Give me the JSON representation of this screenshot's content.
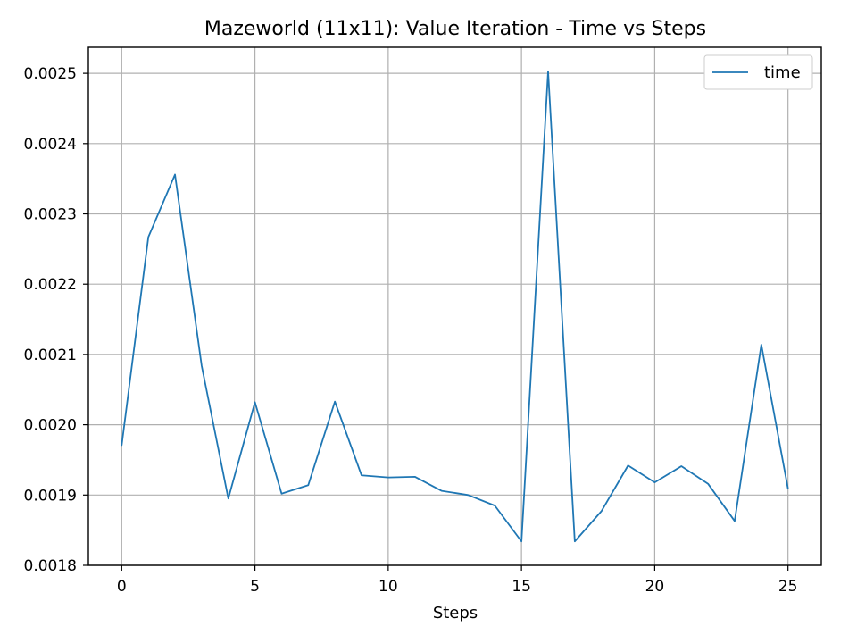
{
  "chart_data": {
    "type": "line",
    "title": "Mazeworld (11x11): Value Iteration - Time vs Steps",
    "xlabel": "Steps",
    "ylabel": "",
    "xlim": [
      -1.25,
      26.25
    ],
    "ylim": [
      0.0018,
      0.002537
    ],
    "grid": true,
    "legend_position": "top-right",
    "x_ticks": [
      0,
      5,
      10,
      15,
      20,
      25
    ],
    "x_tick_labels": [
      "0",
      "5",
      "10",
      "15",
      "20",
      "25"
    ],
    "y_ticks": [
      0.0018,
      0.0019,
      0.002,
      0.0021,
      0.0022,
      0.0023,
      0.0024,
      0.0025
    ],
    "y_tick_labels": [
      "0.0018",
      "0.0019",
      "0.0020",
      "0.0021",
      "0.0022",
      "0.0023",
      "0.0024",
      "0.0025"
    ],
    "x": [
      0,
      1,
      2,
      3,
      4,
      5,
      6,
      7,
      8,
      9,
      10,
      11,
      12,
      13,
      14,
      15,
      16,
      17,
      18,
      19,
      20,
      21,
      22,
      23,
      24,
      25
    ],
    "series": [
      {
        "name": "time",
        "color": "#1f77b4",
        "values": [
          0.001971,
          0.002267,
          0.002356,
          0.002084,
          0.001895,
          0.002032,
          0.001902,
          0.001914,
          0.002033,
          0.001928,
          0.001925,
          0.001926,
          0.001906,
          0.0019,
          0.001885,
          0.001834,
          0.002503,
          0.001834,
          0.001877,
          0.001942,
          0.001918,
          0.001941,
          0.001916,
          0.001863,
          0.002114,
          0.001909
        ]
      }
    ]
  }
}
